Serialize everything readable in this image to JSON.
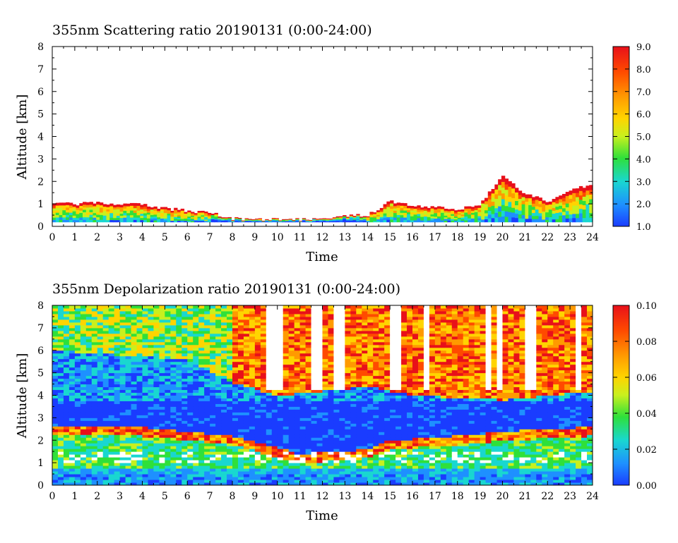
{
  "chart_data": [
    {
      "type": "heatmap",
      "title": "355nm Scattering ratio  20190131 (0:00-24:00)",
      "xlabel": "Time",
      "ylabel": "Altitude [km]",
      "xlim": [
        0,
        24
      ],
      "ylim": [
        0,
        8
      ],
      "x_ticks": [
        "0",
        "1",
        "2",
        "3",
        "4",
        "5",
        "6",
        "7",
        "8",
        "9",
        "10",
        "11",
        "12",
        "13",
        "14",
        "15",
        "16",
        "17",
        "18",
        "19",
        "20",
        "21",
        "22",
        "23",
        "24"
      ],
      "y_ticks": [
        "0",
        "1",
        "2",
        "3",
        "4",
        "5",
        "6",
        "7",
        "8"
      ],
      "colorbar": {
        "min": 1.0,
        "max": 9.0,
        "ticks": [
          "1.0",
          "2.0",
          "3.0",
          "4.0",
          "5.0",
          "6.0",
          "7.0",
          "8.0",
          "9.0"
        ]
      },
      "colormap": [
        "#1a3cff",
        "#1e90ff",
        "#19d7d0",
        "#2fe03a",
        "#c8f01e",
        "#ffd400",
        "#ff9a00",
        "#ff4a00",
        "#e8101a"
      ],
      "boundary_layer_top_km": {
        "time_h": [
          0,
          1,
          2,
          3,
          4,
          5,
          6,
          7,
          8,
          9,
          10,
          11,
          12,
          13,
          14,
          15,
          16,
          17,
          18,
          19,
          20,
          21,
          22,
          23,
          24
        ],
        "altitude": [
          1.0,
          1.0,
          1.05,
          1.0,
          0.95,
          0.8,
          0.7,
          0.6,
          0.35,
          0.3,
          0.3,
          0.3,
          0.35,
          0.5,
          0.5,
          1.1,
          0.9,
          0.85,
          0.75,
          1.0,
          2.2,
          1.5,
          1.1,
          1.6,
          1.9
        ]
      }
    },
    {
      "type": "heatmap",
      "title": "355nm Depolarization ratio  20190131 (0:00-24:00)",
      "xlabel": "Time",
      "ylabel": "Altitude [km]",
      "xlim": [
        0,
        24
      ],
      "ylim": [
        0,
        8
      ],
      "x_ticks": [
        "0",
        "1",
        "2",
        "3",
        "4",
        "5",
        "6",
        "7",
        "8",
        "9",
        "10",
        "11",
        "12",
        "13",
        "14",
        "15",
        "16",
        "17",
        "18",
        "19",
        "20",
        "21",
        "22",
        "23",
        "24"
      ],
      "y_ticks": [
        "0",
        "1",
        "2",
        "3",
        "4",
        "5",
        "6",
        "7",
        "8"
      ],
      "colorbar": {
        "min": 0.0,
        "max": 0.1,
        "ticks": [
          "0.00",
          "0.02",
          "0.04",
          "0.06",
          "0.08",
          "0.10"
        ]
      },
      "colormap": [
        "#1a3cff",
        "#1e90ff",
        "#19d7d0",
        "#2fe03a",
        "#c8f01e",
        "#ffd400",
        "#ff9a00",
        "#ff4a00",
        "#e8101a"
      ],
      "no_data_columns_h": [
        [
          9.6,
          10.2
        ],
        [
          11.6,
          12.1
        ],
        [
          12.5,
          12.9
        ],
        [
          15.1,
          15.6
        ],
        [
          16.6,
          16.8
        ],
        [
          19.3,
          19.4
        ],
        [
          19.8,
          20.0
        ],
        [
          20.9,
          21.5
        ],
        [
          23.3,
          23.5
        ]
      ]
    }
  ]
}
